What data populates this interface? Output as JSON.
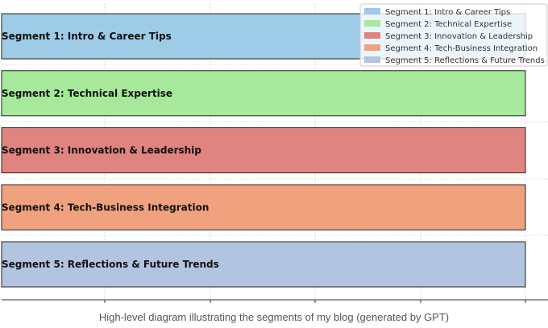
{
  "chart_data": {
    "type": "bar",
    "orientation": "horizontal",
    "categories": [
      "Segment 1: Intro & Career Tips",
      "Segment 2: Technical Expertise",
      "Segment 3: Innovation & Leadership",
      "Segment 4: Tech-Business Integration",
      "Segment 5: Reflections & Future Trends"
    ],
    "values": [
      1,
      1,
      1,
      1,
      1
    ],
    "colors": [
      "#9ecbe6",
      "#a6e99a",
      "#df847f",
      "#f0a27f",
      "#b3c4e0"
    ],
    "xlim": [
      0,
      1
    ],
    "title": "",
    "xlabel": "",
    "ylabel": "",
    "grid": true,
    "legend": {
      "placement": "top-right",
      "entries": [
        "Segment 1: Intro & Career Tips",
        "Segment 2: Technical Expertise",
        "Segment 3: Innovation & Leadership",
        "Segment 4: Tech-Business Integration",
        "Segment 5: Reflections & Future Trends"
      ]
    }
  },
  "caption": "High-level diagram illustrating the segments of my blog (generated by GPT)"
}
